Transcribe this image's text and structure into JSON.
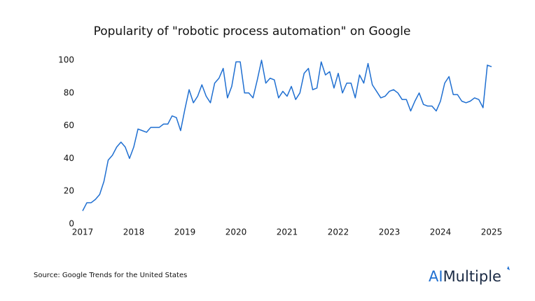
{
  "chart_data": {
    "type": "line",
    "title": "Popularity of \"robotic process automation\" on Google",
    "source": "Source: Google Trends for the United States",
    "logo": [
      "AI",
      "Multiple"
    ],
    "xlim": [
      2017,
      2025
    ],
    "ylim": [
      0,
      100
    ],
    "xticks": [
      2017,
      2018,
      2019,
      2020,
      2021,
      2022,
      2023,
      2024,
      2025
    ],
    "yticks": [
      0,
      20,
      40,
      60,
      80,
      100
    ],
    "grid": false,
    "series": [
      {
        "name": "robotic process automation",
        "color": "#1f6fd1",
        "x": [
          2017,
          2017.083,
          2017.167,
          2017.25,
          2017.333,
          2017.417,
          2017.5,
          2017.583,
          2017.667,
          2017.75,
          2017.833,
          2017.917,
          2018,
          2018.083,
          2018.167,
          2018.25,
          2018.333,
          2018.417,
          2018.5,
          2018.583,
          2018.667,
          2018.75,
          2018.833,
          2018.917,
          2019,
          2019.083,
          2019.167,
          2019.25,
          2019.333,
          2019.417,
          2019.5,
          2019.583,
          2019.667,
          2019.75,
          2019.833,
          2019.917,
          2020,
          2020.083,
          2020.167,
          2020.25,
          2020.333,
          2020.417,
          2020.5,
          2020.583,
          2020.667,
          2020.75,
          2020.833,
          2020.917,
          2021,
          2021.083,
          2021.167,
          2021.25,
          2021.333,
          2021.417,
          2021.5,
          2021.583,
          2021.667,
          2021.75,
          2021.833,
          2021.917,
          2022,
          2022.083,
          2022.167,
          2022.25,
          2022.333,
          2022.417,
          2022.5,
          2022.583,
          2022.667,
          2022.75,
          2022.833,
          2022.917,
          2023,
          2023.083,
          2023.167,
          2023.25,
          2023.333,
          2023.417,
          2023.5,
          2023.583,
          2023.667,
          2023.75,
          2023.833,
          2023.917,
          2024,
          2024.083,
          2024.167,
          2024.25,
          2024.333,
          2024.417,
          2024.5,
          2024.583,
          2024.667,
          2024.75,
          2024.833,
          2024.917,
          2025
        ],
        "values": [
          8,
          13,
          13,
          15,
          18,
          26,
          39,
          42,
          47,
          50,
          47,
          40,
          47,
          58,
          57,
          56,
          59,
          59,
          59,
          61,
          61,
          66,
          65,
          57,
          70,
          82,
          74,
          78,
          85,
          78,
          74,
          86,
          89,
          95,
          77,
          84,
          99,
          99,
          80,
          80,
          77,
          88,
          100,
          86,
          89,
          88,
          77,
          81,
          78,
          84,
          76,
          80,
          92,
          95,
          82,
          83,
          99,
          91,
          93,
          83,
          92,
          80,
          86,
          86,
          77,
          91,
          86,
          98,
          85,
          81,
          77,
          78,
          81,
          82,
          80,
          76,
          76,
          69,
          75,
          80,
          73,
          72,
          72,
          69,
          75,
          86,
          90,
          79,
          79,
          75,
          74,
          75,
          77,
          76,
          71,
          97,
          96
        ]
      }
    ]
  }
}
